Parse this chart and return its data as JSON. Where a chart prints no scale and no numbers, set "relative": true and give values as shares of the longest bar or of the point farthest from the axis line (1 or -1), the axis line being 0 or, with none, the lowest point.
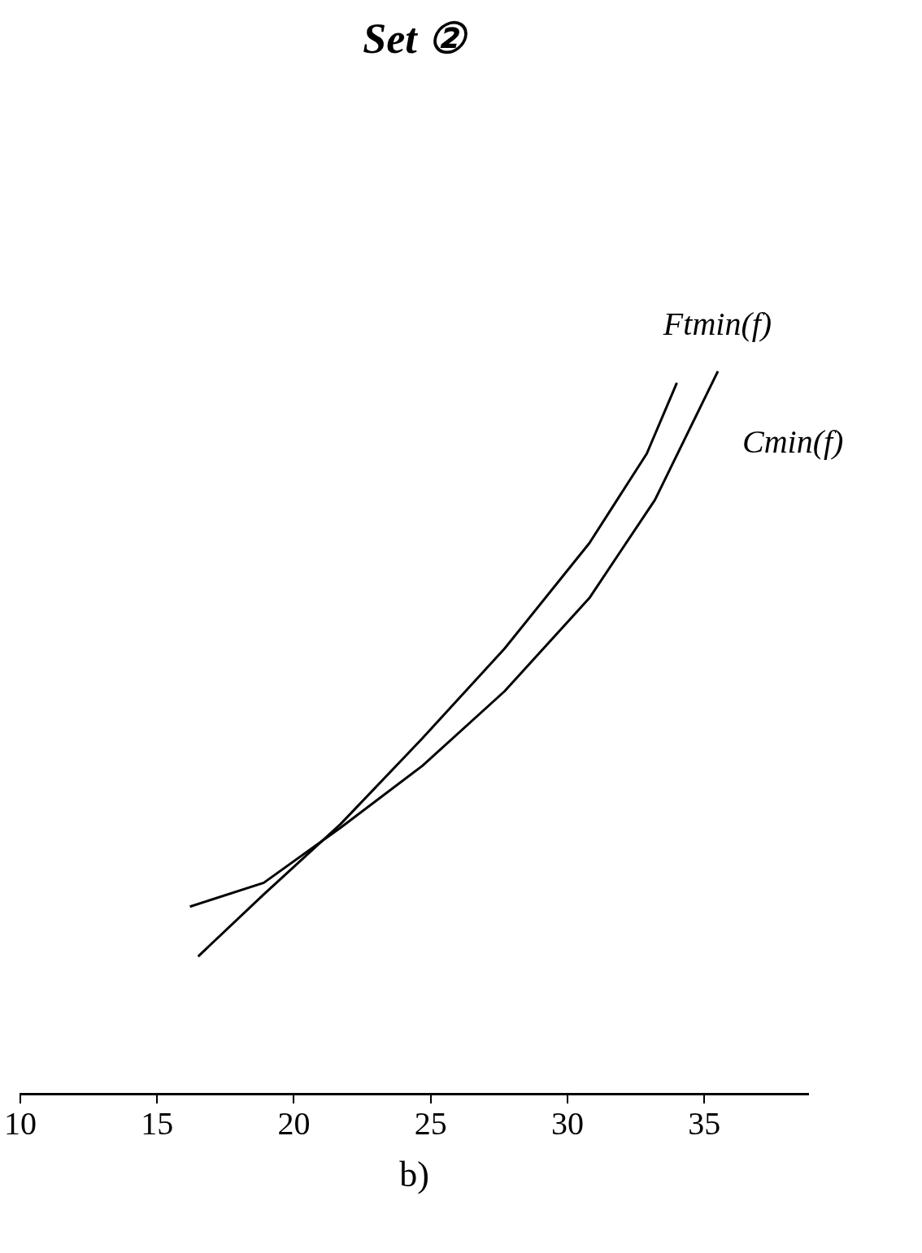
{
  "chart_data": {
    "type": "line",
    "title": "Set ②",
    "relative": true,
    "tick_labels": "x",
    "xlim": [
      10,
      38.8
    ],
    "xticks": [
      10,
      15,
      20,
      25,
      30,
      35
    ],
    "annotations": [
      "b)"
    ],
    "series": [
      {
        "name": "Ftmin(f)",
        "color": "#000000",
        "x": [
          16.5,
          18.9,
          21.7,
          24.7,
          27.7,
          30.8,
          32.9,
          34.0
        ],
        "values": [
          0.19,
          0.276,
          0.373,
          0.492,
          0.616,
          0.762,
          0.886,
          0.984
        ]
      },
      {
        "name": "Cmin(f)",
        "color": "#000000",
        "x": [
          16.2,
          18.9,
          21.7,
          24.7,
          27.7,
          30.8,
          33.2,
          35.5
        ],
        "values": [
          0.259,
          0.292,
          0.368,
          0.454,
          0.557,
          0.686,
          0.822,
          1.0
        ]
      }
    ]
  }
}
